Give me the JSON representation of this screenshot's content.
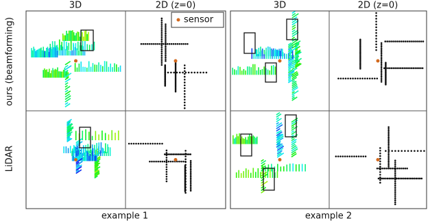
{
  "row_labels": [
    "ours (beamforming)",
    "LiDAR"
  ],
  "legend": "sensor",
  "examples": [
    {
      "label": "example 1",
      "headers": [
        "3D",
        "2D (z=0)"
      ]
    },
    {
      "label": "example 2",
      "headers": [
        "3D",
        "2D (z=0)"
      ]
    }
  ]
}
